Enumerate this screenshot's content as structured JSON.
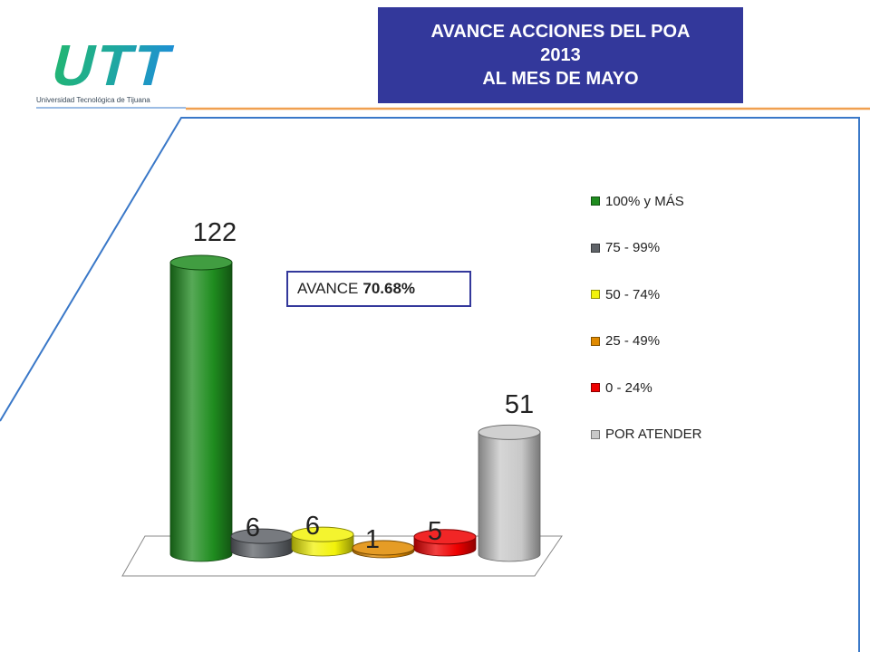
{
  "header": {
    "logo_text": "UTT",
    "logo_caption": "Universidad Tecnológica de Tijuana",
    "title_lines": [
      "AVANCE ACCIONES DEL POA",
      "2013",
      "AL MES DE MAYO"
    ]
  },
  "annotation": {
    "label": "AVANCE",
    "value": "70.68%"
  },
  "colors": {
    "title_bg": "#33389b",
    "accent_orange": "#f0a050",
    "frame_blue": "#3a78c8",
    "logo_green": "#22b573",
    "logo_blue": "#1e8fd6"
  },
  "chart_data": {
    "type": "bar",
    "style": "3d-cylinder",
    "categories": [
      "100% y MÁS",
      "75 - 99%",
      "50 - 74%",
      "25 - 49%",
      "0 - 24%",
      "POR ATENDER"
    ],
    "values": [
      122,
      6,
      6,
      1,
      5,
      51
    ],
    "data_labels": [
      "122",
      "6",
      "6",
      "1",
      "5",
      "51"
    ],
    "series_colors": [
      "#1f8c1f",
      "#5f6368",
      "#f2f20a",
      "#e08a00",
      "#ee0000",
      "#c8c8c8"
    ],
    "legend": [
      "100% y MÁS",
      "75 - 99%",
      "50 - 74%",
      "25 - 49%",
      "0 - 24%",
      "POR ATENDER"
    ],
    "legend_position": "right",
    "grid": false,
    "ylim": [
      0,
      122
    ]
  }
}
